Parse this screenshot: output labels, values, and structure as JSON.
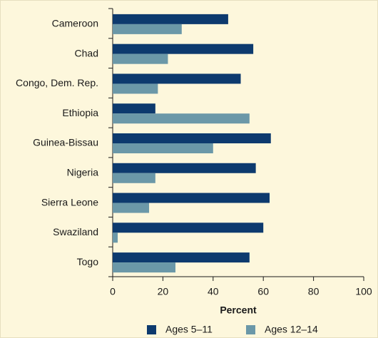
{
  "chart_data": {
    "type": "barh",
    "categories": [
      "Cameroon",
      "Chad",
      "Congo, Dem. Rep.",
      "Ethiopia",
      "Guinea-Bissau",
      "Nigeria",
      "Sierra Leone",
      "Swaziland",
      "Togo"
    ],
    "series": [
      {
        "name": "Ages 5–11",
        "color": "#0d3a6e",
        "values": [
          46,
          56,
          51,
          17,
          63,
          57,
          62.5,
          60,
          54.5
        ]
      },
      {
        "name": "Ages 12–14",
        "color": "#6b98a8",
        "values": [
          27.5,
          22,
          18,
          54.5,
          40,
          17,
          14.5,
          2,
          25
        ]
      }
    ],
    "xlabel": "Percent",
    "xlim": [
      0,
      100
    ],
    "xticks": [
      0,
      20,
      40,
      60,
      80,
      100
    ]
  }
}
